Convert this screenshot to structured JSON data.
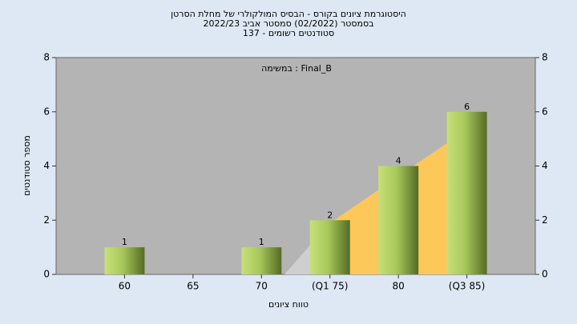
{
  "chart_data": {
    "type": "bar",
    "title": [
      "היסטוגרמת ציונים בקורס - הבסיס המולקולרי של מחלת הסרטן",
      "בסמסטר  (02/2022)  סמסטר אביב 2022/23",
      "סטודנטים רשומים - 137"
    ],
    "annotation": "במשימה : Final_B",
    "x_label": "טווח ציונים",
    "y_label": "מספר סטודנטים",
    "categories": [
      "60",
      "65",
      "70",
      "(Q1 75)",
      "80",
      "(Q3 85)"
    ],
    "values": [
      1,
      0,
      1,
      2,
      4,
      6
    ],
    "value_labels": [
      "1",
      null,
      "1",
      "2",
      "4",
      "6"
    ],
    "ylim": [
      0,
      8
    ],
    "yticks": [
      0,
      2,
      4,
      6,
      8
    ],
    "color": "#9fc24a"
  }
}
